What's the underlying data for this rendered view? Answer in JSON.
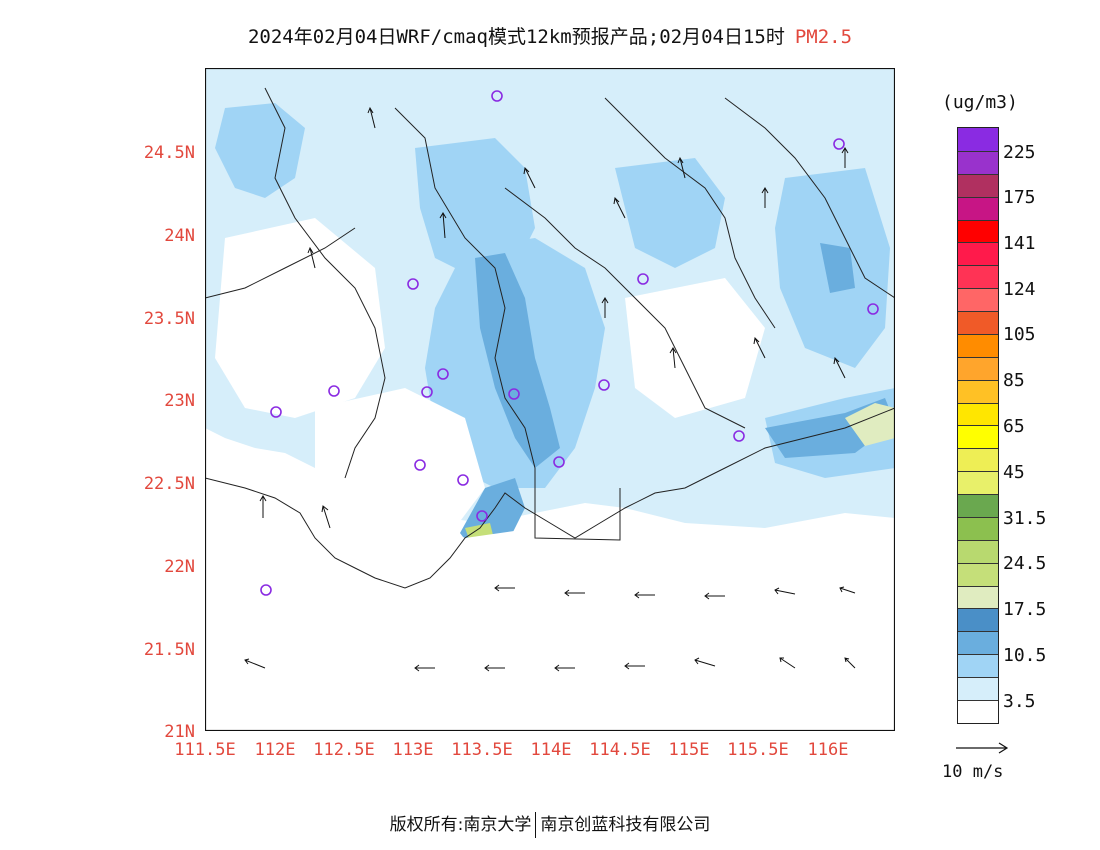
{
  "title": {
    "text": "2024年02月04日WRF/cmaq模式12km预报产品;02月04日15时",
    "pollutant": "PM2.5"
  },
  "map": {
    "region": "Guangdong coast",
    "lat_labels": [
      "24.5N",
      "24N",
      "23.5N",
      "23N",
      "22.5N",
      "22N",
      "21.5N",
      "21N"
    ],
    "lon_labels": [
      "111.5E",
      "112E",
      "112.5E",
      "113E",
      "113.5E",
      "114E",
      "114.5E",
      "115E",
      "115.5E",
      "116E"
    ],
    "station_marker_color": "#8a2be2",
    "wind_vectors_shown": true
  },
  "colorbar": {
    "unit": "(ug/m3)",
    "colors": [
      "#8a2be2",
      "#9932cc",
      "#b03060",
      "#c71585",
      "#ff0000",
      "#ff1a4b",
      "#ff3355",
      "#ff6666",
      "#f05a28",
      "#ff8c00",
      "#ffa52c",
      "#ffc125",
      "#ffe600",
      "#ffff00",
      "#eeee55",
      "#e8f06a",
      "#6aa84f",
      "#8cc04f",
      "#b8d96f",
      "#c5df79",
      "#e0ecc0",
      "#4a8fc7",
      "#6aaede",
      "#a0d4f5",
      "#d6eefa",
      "#ffffff"
    ],
    "labels": [
      "225",
      "175",
      "141",
      "124",
      "105",
      "85",
      "65",
      "45",
      "31.5",
      "24.5",
      "17.5",
      "10.5",
      "3.5"
    ]
  },
  "wind_reference": {
    "label": "10 m/s"
  },
  "footer": {
    "copyright_left": "版权所有:南京大学",
    "copyright_right": "南京创蓝科技有限公司"
  }
}
